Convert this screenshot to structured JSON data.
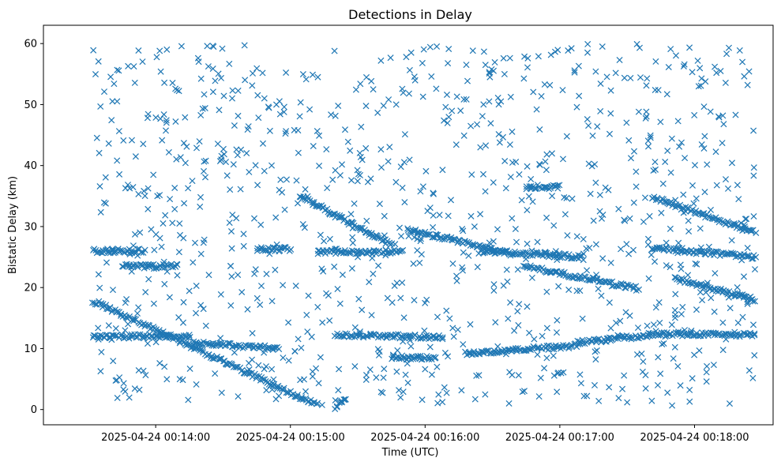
{
  "chart_data": {
    "type": "scatter",
    "title": "Detections in Delay",
    "xlabel": "Time (UTC)",
    "ylabel": "Bistatic Delay (km)",
    "x_tick_labels": [
      "2025-04-24 00:14:00",
      "2025-04-24 00:15:00",
      "2025-04-24 00:16:00",
      "2025-04-24 00:17:00",
      "2025-04-24 00:18:00"
    ],
    "x_ticks": [
      "00:14:00",
      "00:15:00",
      "00:16:00",
      "00:17:00",
      "00:18:00"
    ],
    "y_ticks": [
      0,
      10,
      20,
      30,
      40,
      50,
      60
    ],
    "xlim": [
      "2025-04-24 00:13:10",
      "2025-04-24 00:18:35"
    ],
    "ylim": [
      -2.5,
      63
    ],
    "marker": "x",
    "color": "#1f77b4",
    "grid": false,
    "legend": "none",
    "tracks": [
      {
        "x": [
          "00:13:32",
          "00:15:12"
        ],
        "y": [
          17.8,
          0.7
        ]
      },
      {
        "x": [
          "00:15:20",
          "00:15:25"
        ],
        "y": [
          0.3,
          2.0
        ]
      },
      {
        "x": [
          "00:15:04",
          "00:15:45"
        ],
        "y": [
          35.0,
          27.0
        ]
      },
      {
        "x": [
          "00:15:52",
          "00:16:36"
        ],
        "y": [
          29.5,
          25.8
        ]
      },
      {
        "x": [
          "00:16:44",
          "00:17:35"
        ],
        "y": [
          23.5,
          19.8
        ]
      },
      {
        "x": [
          "00:17:41",
          "00:18:27"
        ],
        "y": [
          34.8,
          29.0
        ]
      },
      {
        "x": [
          "00:17:41",
          "00:18:27"
        ],
        "y": [
          26.5,
          25.0
        ]
      },
      {
        "x": [
          "00:17:51",
          "00:18:27"
        ],
        "y": [
          21.5,
          18.0
        ]
      },
      {
        "x": [
          "00:13:32",
          "00:14:15"
        ],
        "y": [
          12.0,
          12.0
        ]
      },
      {
        "x": [
          "00:14:15",
          "00:14:55"
        ],
        "y": [
          11.0,
          10.0
        ]
      },
      {
        "x": [
          "00:15:20",
          "00:16:08"
        ],
        "y": [
          12.3,
          11.8
        ]
      },
      {
        "x": [
          "00:16:18",
          "00:17:08"
        ],
        "y": [
          9.2,
          10.5
        ]
      },
      {
        "x": [
          "00:17:08",
          "00:17:40"
        ],
        "y": [
          11.0,
          12.2
        ]
      },
      {
        "x": [
          "00:17:40",
          "00:18:27"
        ],
        "y": [
          12.3,
          12.3
        ]
      },
      {
        "x": [
          "00:13:32",
          "00:13:55"
        ],
        "y": [
          26.0,
          26.0
        ]
      },
      {
        "x": [
          "00:13:45",
          "00:14:10"
        ],
        "y": [
          23.5,
          23.5
        ]
      },
      {
        "x": [
          "00:14:45",
          "00:15:00"
        ],
        "y": [
          26.3,
          26.3
        ]
      },
      {
        "x": [
          "00:15:12",
          "00:15:50"
        ],
        "y": [
          25.8,
          25.8
        ]
      },
      {
        "x": [
          "00:16:25",
          "00:17:10"
        ],
        "y": [
          26.0,
          25.0
        ]
      },
      {
        "x": [
          "00:16:45",
          "00:17:00"
        ],
        "y": [
          36.5,
          36.5
        ]
      },
      {
        "x": [
          "00:15:45",
          "00:16:05"
        ],
        "y": [
          8.5,
          8.5
        ]
      }
    ],
    "track_point_count": 1360,
    "noise_point_count": 1000
  }
}
